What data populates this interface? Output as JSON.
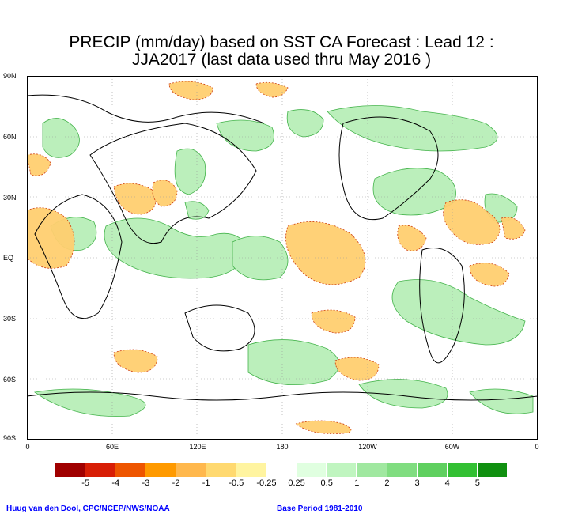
{
  "title": {
    "line1": "PRECIP (mm/day) based on SST CA Forecast : Lead 12 :",
    "line2": "JJA2017 (last data used thru May 2016 )"
  },
  "axes": {
    "lat_labels": [
      "90N",
      "60N",
      "30N",
      "EQ",
      "30S",
      "60S",
      "90S"
    ],
    "lon_labels": [
      "0",
      "60E",
      "120E",
      "180",
      "120W",
      "60W",
      "0"
    ]
  },
  "legend": {
    "labels": [
      "-5",
      "-4",
      "-3",
      "-2",
      "-1",
      "-0.5",
      "-0.25",
      "0.25",
      "0.5",
      "1",
      "2",
      "3",
      "4",
      "5"
    ],
    "colors": [
      "#a00000",
      "#d81e05",
      "#ee5500",
      "#ff9a00",
      "#ffb84d",
      "#ffd970",
      "#fff4a0",
      "#ffffff",
      "#e0ffe0",
      "#c0f5c0",
      "#a0e8a0",
      "#80dd80",
      "#5fd05f",
      "#33c033",
      "#109010"
    ]
  },
  "credits": {
    "left": "Huug van den Dool, CPC/NCEP/NWS/NOAA",
    "right": "Base Period 1981-2010"
  }
}
